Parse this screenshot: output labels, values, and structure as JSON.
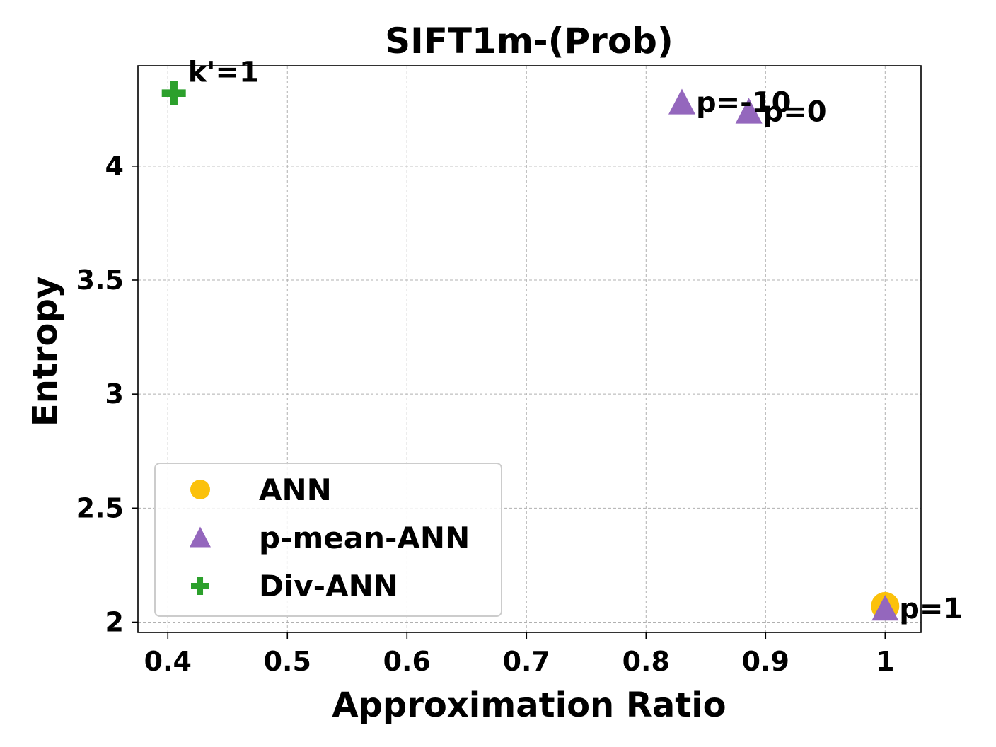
{
  "chart_data": {
    "type": "scatter",
    "title": "SIFT1m-(Prob)",
    "xlabel": "Approximation Ratio",
    "ylabel": "Entropy",
    "xlim": [
      0.375,
      1.03
    ],
    "ylim": [
      1.955,
      4.44
    ],
    "xticks": [
      0.4,
      0.5,
      0.6,
      0.7,
      0.8,
      0.9,
      1
    ],
    "xtick_labels": [
      "0.4",
      "0.5",
      "0.6",
      "0.7",
      "0.8",
      "0.9",
      "1"
    ],
    "yticks": [
      2,
      2.5,
      3,
      3.5,
      4
    ],
    "ytick_labels": [
      "2",
      "2.5",
      "3",
      "3.5",
      "4"
    ],
    "grid": true,
    "legend_position": "lower-left",
    "series": [
      {
        "name": "ANN",
        "marker": "circle",
        "color": "#fbc10b",
        "points": [
          {
            "x": 1.0,
            "y": 2.07,
            "label": ""
          }
        ]
      },
      {
        "name": "p-mean-ANN",
        "marker": "triangle",
        "color": "#9467bd",
        "points": [
          {
            "x": 0.83,
            "y": 4.28,
            "label": "p=-10"
          },
          {
            "x": 0.886,
            "y": 4.24,
            "label": "p=0"
          },
          {
            "x": 1.0,
            "y": 2.06,
            "label": "p=1"
          }
        ]
      },
      {
        "name": "Div-ANN",
        "marker": "plus",
        "color": "#2ca02c",
        "points": [
          {
            "x": 0.405,
            "y": 4.32,
            "label": "k'=1"
          }
        ]
      }
    ]
  }
}
